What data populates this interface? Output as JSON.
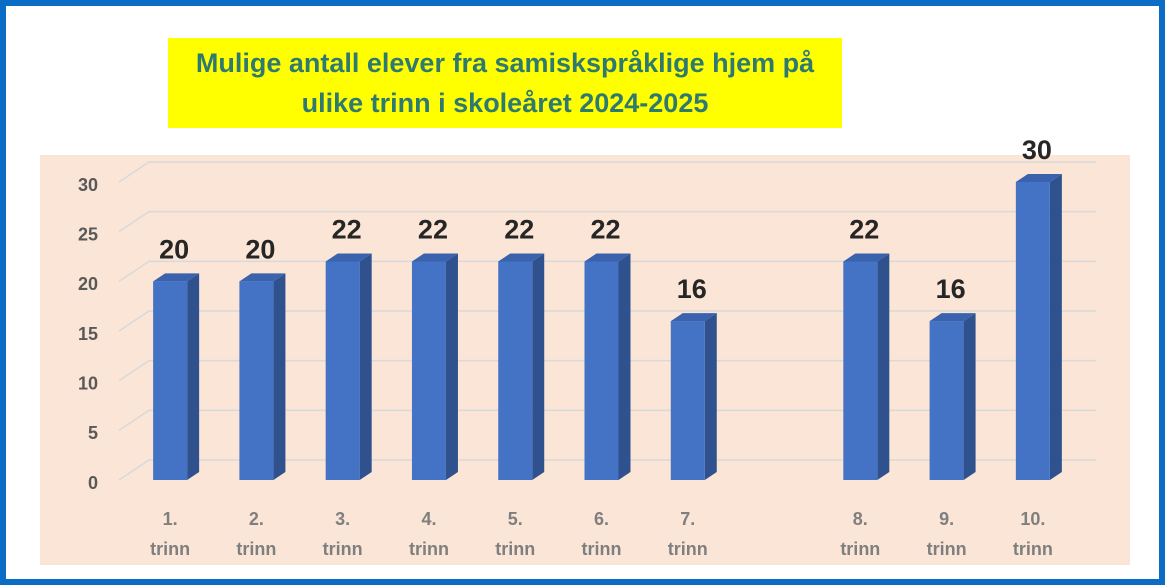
{
  "chart_data": {
    "type": "bar3d",
    "title": "Mulige antall elever fra samiskspråklige hjem på ulike trinn i skoleåret 2024-2025",
    "categories": [
      "1. trinn",
      "2. trinn",
      "3. trinn",
      "4. trinn",
      "5. trinn",
      "6. trinn",
      "7. trinn",
      null,
      "8. trinn",
      "9. trinn",
      "10. trinn"
    ],
    "values": [
      20,
      20,
      22,
      22,
      22,
      22,
      16,
      null,
      22,
      16,
      30
    ],
    "color": "#4472c4",
    "ylim": [
      0,
      30
    ],
    "yticks": [
      0,
      5,
      10,
      15,
      20,
      25,
      30
    ],
    "grid": true
  }
}
